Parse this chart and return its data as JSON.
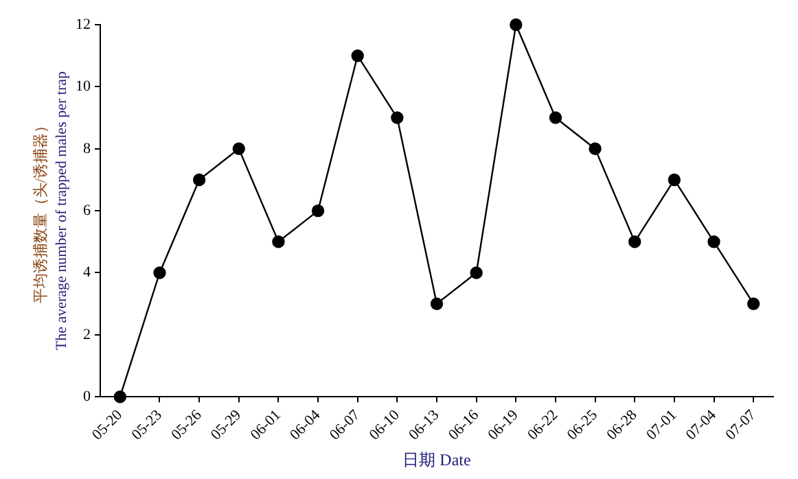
{
  "chart_data": {
    "type": "line",
    "xlabel": "日期 Date",
    "ylabel": "平均诱捕数量（头/诱捕器）\nThe average number of trapped males per trap",
    "categories": [
      "05-20",
      "05-23",
      "05-26",
      "05-29",
      "06-01",
      "06-04",
      "06-07",
      "06-10",
      "06-13",
      "06-16",
      "06-19",
      "06-22",
      "06-25",
      "06-28",
      "07-01",
      "07-04",
      "07-07"
    ],
    "series": [
      {
        "color": "#000000",
        "values": [
          0,
          4,
          7,
          8,
          5,
          6,
          11,
          9,
          3,
          4,
          12,
          9,
          8,
          5,
          7,
          5,
          3
        ]
      }
    ],
    "ylim": [
      0,
      12
    ],
    "yticks": [
      0,
      2,
      4,
      6,
      8,
      10,
      12
    ],
    "grid": false,
    "legend": false,
    "marker": "circle",
    "line_style": "solid"
  }
}
